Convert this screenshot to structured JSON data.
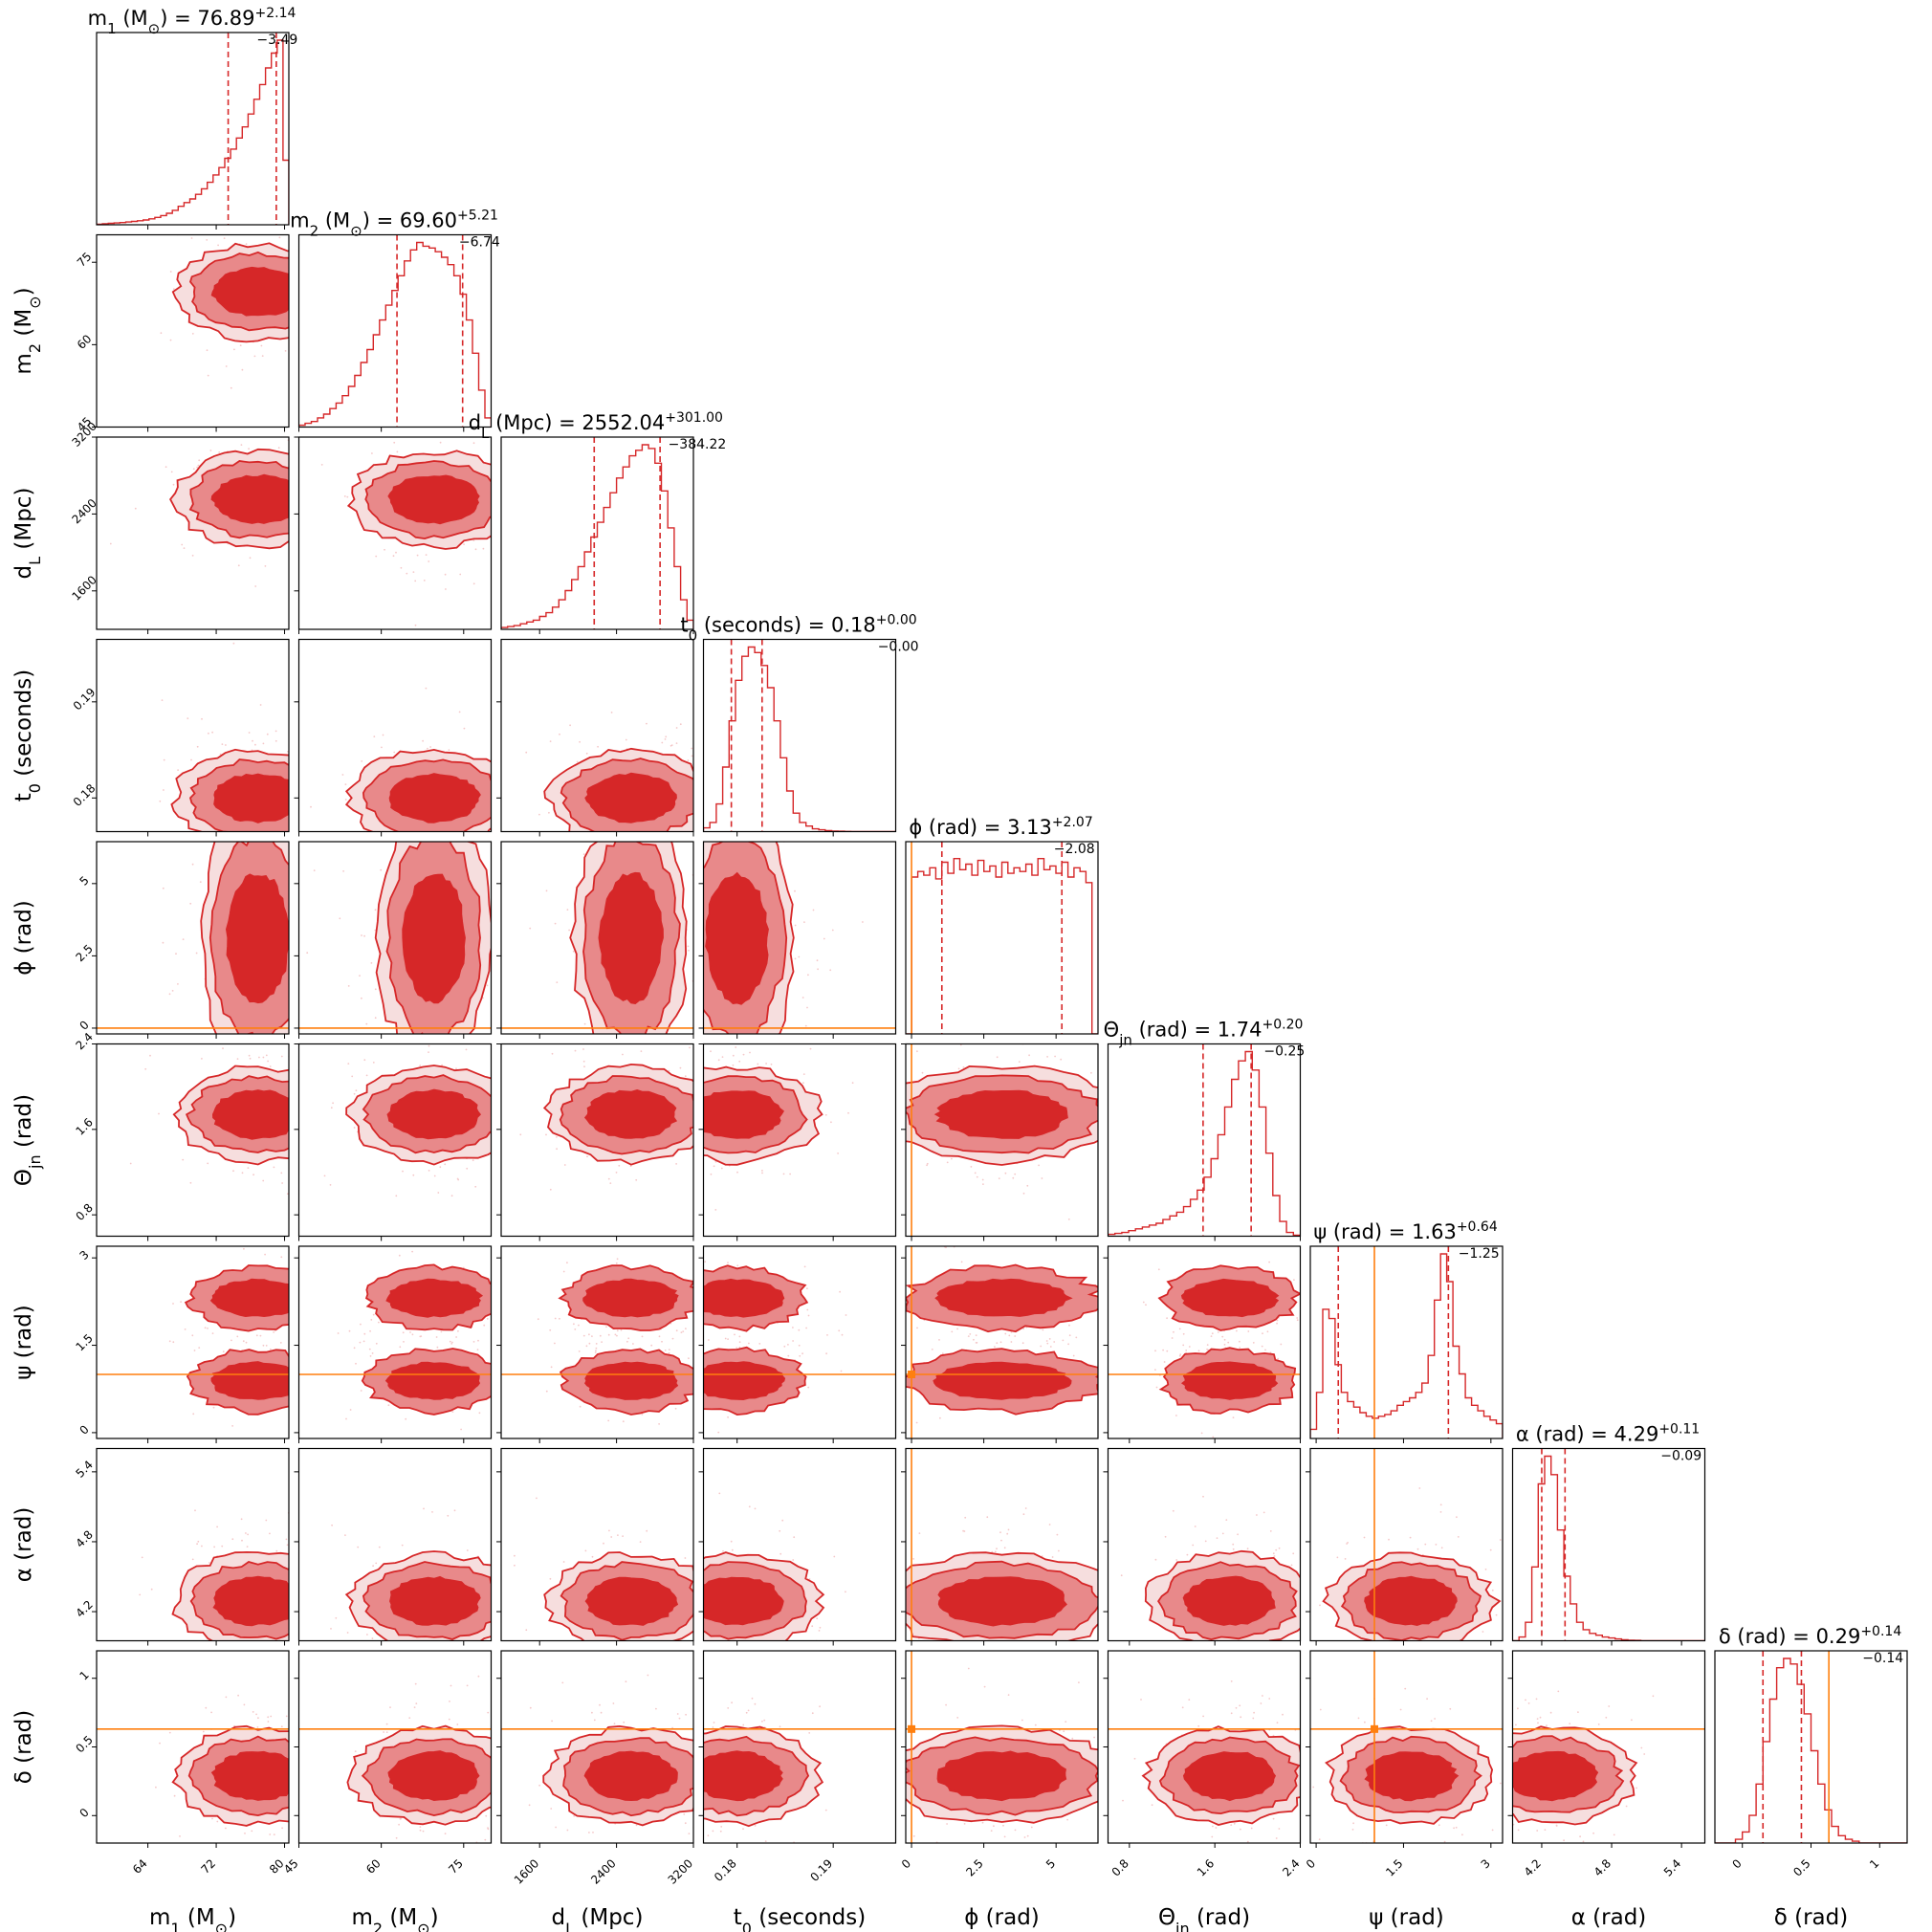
{
  "chart_data": {
    "type": "corner",
    "title": "",
    "parameters": [
      {
        "key": "m1",
        "axis_label": "m_1 (M_⊙)",
        "title_prefix": "m_1 (M_⊙) = ",
        "median": "76.89",
        "plus": "+2.14",
        "minus": "−3.49",
        "range": [
          58,
          80.5
        ],
        "ticks": [
          64,
          72,
          80
        ],
        "quantiles": [
          73.4,
          79.03
        ],
        "truth": null,
        "hist": [
          0.003,
          0.005,
          0.008,
          0.01,
          0.012,
          0.015,
          0.018,
          0.022,
          0.026,
          0.032,
          0.04,
          0.05,
          0.062,
          0.078,
          0.1,
          0.12,
          0.14,
          0.165,
          0.195,
          0.23,
          0.27,
          0.31,
          0.36,
          0.41,
          0.47,
          0.53,
          0.6,
          0.68,
          0.76,
          0.85,
          0.93,
          1.0,
          0.35
        ]
      },
      {
        "key": "m2",
        "axis_label": "m_2 (M_⊙)",
        "title_prefix": "m_2 (M_⊙) = ",
        "median": "69.60",
        "plus": "+5.21",
        "minus": "−6.74",
        "range": [
          45,
          80
        ],
        "ticks": [
          45,
          60,
          75
        ],
        "quantiles": [
          62.86,
          74.81
        ],
        "truth": null,
        "hist": [
          0.01,
          0.02,
          0.03,
          0.05,
          0.07,
          0.1,
          0.13,
          0.17,
          0.22,
          0.28,
          0.35,
          0.42,
          0.5,
          0.58,
          0.66,
          0.74,
          0.82,
          0.9,
          0.96,
          1.0,
          0.98,
          0.97,
          0.95,
          0.92,
          0.88,
          0.82,
          0.72,
          0.58,
          0.4,
          0.2,
          0.05
        ]
      },
      {
        "key": "dL",
        "axis_label": "d_L (Mpc)",
        "title_prefix": "d_L (Mpc) = ",
        "median": "2552.04",
        "plus": "+301.00",
        "minus": "−384.22",
        "range": [
          1200,
          3200
        ],
        "ticks": [
          1600,
          2400,
          3200
        ],
        "quantiles": [
          2167.82,
          2853.04
        ],
        "truth": null,
        "hist": [
          0.01,
          0.015,
          0.02,
          0.03,
          0.04,
          0.05,
          0.07,
          0.09,
          0.12,
          0.16,
          0.21,
          0.27,
          0.34,
          0.42,
          0.5,
          0.58,
          0.66,
          0.74,
          0.82,
          0.88,
          0.94,
          0.97,
          1.0,
          0.98,
          0.9,
          0.75,
          0.55,
          0.34,
          0.16,
          0.05
        ]
      },
      {
        "key": "t0",
        "axis_label": "t_0 (seconds)",
        "title_prefix": "t_0 (seconds) = ",
        "median": "0.18",
        "plus": "+0.00",
        "minus": "−0.00",
        "range": [
          0.1765,
          0.1965
        ],
        "ticks": [
          0.18,
          0.19
        ],
        "quantiles": [
          0.1794,
          0.1826
        ],
        "truth": null,
        "hist": [
          0.02,
          0.05,
          0.15,
          0.35,
          0.6,
          0.82,
          0.95,
          1.0,
          0.97,
          0.9,
          0.78,
          0.6,
          0.4,
          0.22,
          0.1,
          0.05,
          0.03,
          0.015,
          0.01,
          0.005,
          0.003,
          0.002,
          0.001,
          0.0,
          0.0,
          0.0,
          0.0,
          0.0,
          0.0,
          0.0
        ]
      },
      {
        "key": "phi",
        "axis_label": "ϕ (rad)",
        "title_prefix": "ϕ (rad) = ",
        "median": "3.13",
        "plus": "+2.07",
        "minus": "−2.08",
        "range": [
          -0.2,
          6.45
        ],
        "ticks": [
          0.0,
          2.5,
          5.0
        ],
        "quantiles": [
          1.05,
          5.2
        ],
        "truth": 0.0,
        "hist": [
          0.0,
          0.85,
          0.88,
          0.86,
          0.9,
          0.84,
          0.93,
          0.87,
          0.95,
          0.89,
          0.92,
          0.86,
          0.94,
          0.88,
          0.91,
          0.85,
          0.93,
          0.87,
          0.9,
          0.88,
          0.92,
          0.86,
          0.95,
          0.89,
          0.91,
          0.87,
          0.93,
          0.85,
          0.9,
          0.88,
          0.82,
          0.0
        ]
      },
      {
        "key": "theta",
        "axis_label": "Θ_jn (rad)",
        "title_prefix": "Θ_jn (rad) = ",
        "median": "1.74",
        "plus": "+0.20",
        "minus": "−0.25",
        "range": [
          0.6,
          2.4
        ],
        "ticks": [
          0.8,
          1.6,
          2.4
        ],
        "quantiles": [
          1.49,
          1.94
        ],
        "truth": null,
        "hist": [
          0.01,
          0.015,
          0.02,
          0.03,
          0.04,
          0.05,
          0.06,
          0.07,
          0.09,
          0.11,
          0.13,
          0.16,
          0.2,
          0.25,
          0.32,
          0.42,
          0.55,
          0.7,
          0.85,
          0.95,
          1.0,
          0.9,
          0.7,
          0.45,
          0.22,
          0.08,
          0.02,
          0.005
        ]
      },
      {
        "key": "psi",
        "axis_label": "ψ (rad)",
        "title_prefix": "ψ (rad) = ",
        "median": "1.63",
        "plus": "+0.64",
        "minus": "−1.25",
        "range": [
          -0.1,
          3.2
        ],
        "ticks": [
          0.0,
          1.5,
          3.0
        ],
        "quantiles": [
          0.38,
          2.27
        ],
        "truth": 1.0,
        "hist": [
          0.05,
          0.25,
          0.7,
          0.65,
          0.4,
          0.25,
          0.2,
          0.17,
          0.14,
          0.12,
          0.11,
          0.12,
          0.13,
          0.15,
          0.18,
          0.2,
          0.22,
          0.25,
          0.3,
          0.45,
          0.75,
          1.0,
          0.85,
          0.5,
          0.35,
          0.22,
          0.18,
          0.15,
          0.12,
          0.1,
          0.08
        ]
      },
      {
        "key": "alpha",
        "axis_label": "α (rad)",
        "title_prefix": "α (rad) = ",
        "median": "4.29",
        "plus": "+0.11",
        "minus": "−0.09",
        "range": [
          3.95,
          5.6
        ],
        "ticks": [
          4.2,
          4.8,
          5.4
        ],
        "quantiles": [
          4.2,
          4.4
        ],
        "truth": null,
        "hist": [
          0.0,
          0.02,
          0.1,
          0.4,
          0.85,
          1.0,
          0.9,
          0.6,
          0.35,
          0.2,
          0.1,
          0.06,
          0.04,
          0.03,
          0.02,
          0.015,
          0.01,
          0.005,
          0.003,
          0.002,
          0.0,
          0.0,
          0.0,
          0.0,
          0.0,
          0.0,
          0.0,
          0.0,
          0.0,
          0.0
        ]
      },
      {
        "key": "delta",
        "axis_label": "δ (rad)",
        "title_prefix": "δ (rad) = ",
        "median": "0.29",
        "plus": "+0.14",
        "minus": "−0.14",
        "range": [
          -0.2,
          1.2
        ],
        "ticks": [
          0.0,
          0.5,
          1.0
        ],
        "quantiles": [
          0.15,
          0.43
        ],
        "truth": 0.63,
        "hist": [
          0.0,
          0.0,
          0.0,
          0.02,
          0.06,
          0.15,
          0.32,
          0.55,
          0.78,
          0.95,
          1.0,
          0.97,
          0.86,
          0.7,
          0.5,
          0.32,
          0.18,
          0.09,
          0.04,
          0.02,
          0.01,
          0.0,
          0.0,
          0.0,
          0.0,
          0.0,
          0.0,
          0.0
        ]
      }
    ],
    "colors": {
      "density": "#d62728",
      "density_light": "#e8898a",
      "density_lighter": "#f4c8c9",
      "quantile": "#d62728",
      "truth": "#ff7f0e",
      "axis": "#000000"
    },
    "levels": [
      "0.39",
      "0.86"
    ],
    "dashed_quantiles": true
  }
}
